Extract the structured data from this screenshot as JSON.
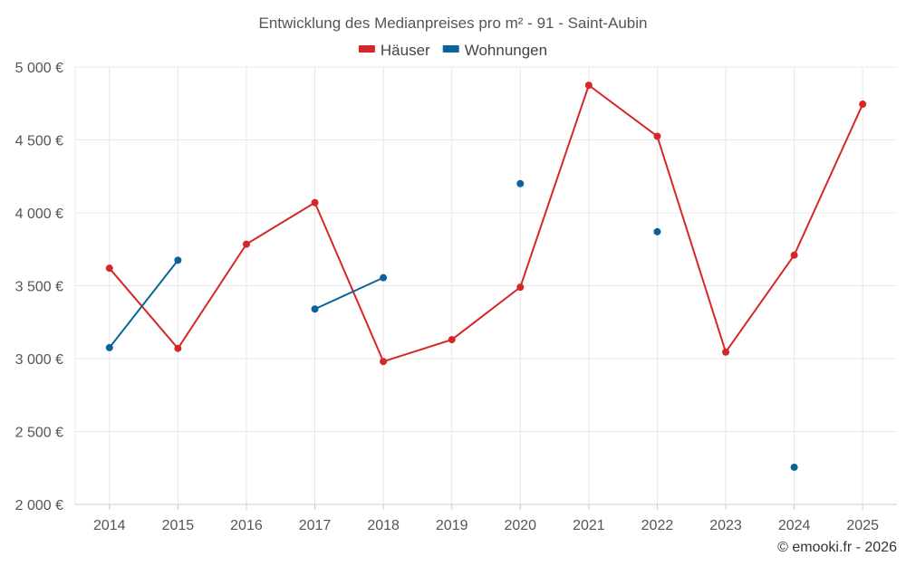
{
  "chart_data": {
    "type": "line",
    "title": "Entwicklung des Medianpreises pro m² - 91 - Saint-Aubin",
    "categories": [
      "2014",
      "2015",
      "2016",
      "2017",
      "2018",
      "2019",
      "2020",
      "2021",
      "2022",
      "2023",
      "2024",
      "2025"
    ],
    "ylim": [
      2000,
      5000
    ],
    "y_ticks": [
      {
        "value": 2000,
        "label": "2 000 €"
      },
      {
        "value": 2500,
        "label": "2 500 €"
      },
      {
        "value": 3000,
        "label": "3 000 €"
      },
      {
        "value": 3500,
        "label": "3 500 €"
      },
      {
        "value": 4000,
        "label": "4 000 €"
      },
      {
        "value": 4500,
        "label": "4 500 €"
      },
      {
        "value": 5000,
        "label": "5 000 €"
      }
    ],
    "grid": true,
    "legend_position": "top-center",
    "series": [
      {
        "name": "Häuser",
        "color": "#d62728",
        "values": [
          3620,
          3070,
          3785,
          4070,
          2980,
          3130,
          3490,
          4875,
          4525,
          3045,
          3710,
          4745
        ]
      },
      {
        "name": "Wohnungen",
        "color": "#0a6499",
        "values": [
          3075,
          3675,
          null,
          3340,
          3555,
          null,
          4200,
          null,
          3870,
          null,
          2255,
          null
        ]
      }
    ],
    "credit": "© emooki.fr - 2026"
  }
}
